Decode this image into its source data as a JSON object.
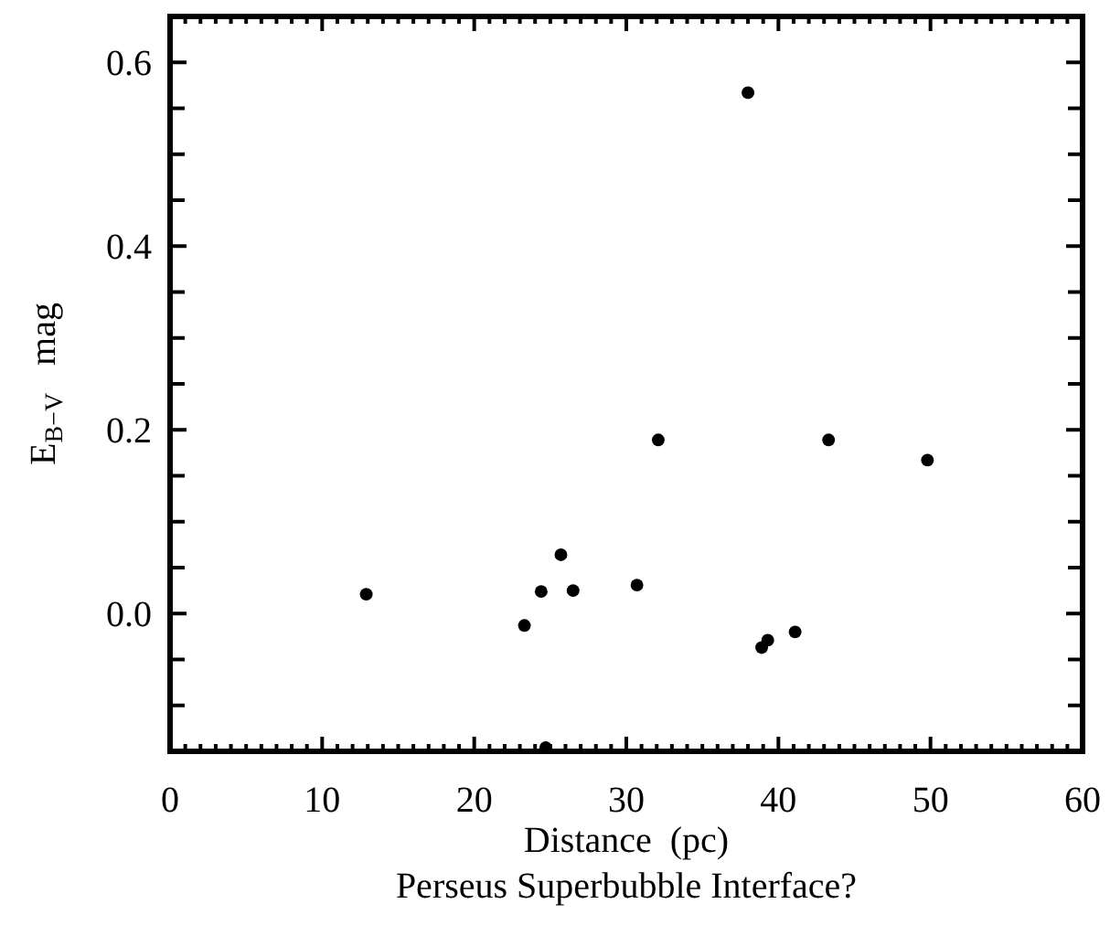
{
  "chart_data": {
    "type": "scatter",
    "title": "Perseus Superbubble Interface?",
    "xlabel": "Distance  (pc)",
    "ylabel": "E$_{B−V}$   mag",
    "x": [
      12.9,
      23.3,
      24.4,
      25.7,
      26.5,
      30.7,
      32.1,
      38.0,
      43.3,
      49.8,
      38.9,
      39.3,
      41.1,
      24.7
    ],
    "values": [
      0.021,
      -0.013,
      0.024,
      0.064,
      0.025,
      0.031,
      0.189,
      0.567,
      0.189,
      0.167,
      -0.037,
      -0.029,
      -0.02,
      -0.146
    ],
    "color": "#000000",
    "marker": "circle",
    "grid": false,
    "xlim": [
      0,
      60
    ],
    "ylim": [
      -0.15,
      0.65
    ],
    "xticks": [
      0,
      10,
      20,
      30,
      40,
      50,
      60,
      {
        "value": 1,
        "label": null
      },
      {
        "value": 2,
        "label": null
      },
      {
        "value": 3,
        "label": null
      },
      {
        "value": 4,
        "label": null
      },
      {
        "value": 5,
        "label": null
      },
      {
        "value": 6,
        "label": null
      },
      {
        "value": 7,
        "label": null
      },
      {
        "value": 8,
        "label": null
      },
      {
        "value": 9,
        "label": null
      },
      {
        "value": 11,
        "label": null
      },
      {
        "value": 12,
        "label": null
      },
      {
        "value": 13,
        "label": null
      },
      {
        "value": 14,
        "label": null
      },
      {
        "value": 15,
        "label": null
      },
      {
        "value": 16,
        "label": null
      },
      {
        "value": 17,
        "label": null
      },
      {
        "value": 18,
        "label": null
      },
      {
        "value": 19,
        "label": null
      },
      {
        "value": 21,
        "label": null
      },
      {
        "value": 22,
        "label": null
      },
      {
        "value": 23,
        "label": null
      },
      {
        "value": 24,
        "label": null
      },
      {
        "value": 25,
        "label": null
      },
      {
        "value": 26,
        "label": null
      },
      {
        "value": 27,
        "label": null
      },
      {
        "value": 28,
        "label": null
      },
      {
        "value": 29,
        "label": null
      },
      {
        "value": 31,
        "label": null
      },
      {
        "value": 32,
        "label": null
      },
      {
        "value": 33,
        "label": null
      },
      {
        "value": 34,
        "label": null
      },
      {
        "value": 35,
        "label": null
      },
      {
        "value": 36,
        "label": null
      },
      {
        "value": 37,
        "label": null
      },
      {
        "value": 38,
        "label": null
      },
      {
        "value": 39,
        "label": null
      },
      {
        "value": 41,
        "label": null
      },
      {
        "value": 42,
        "label": null
      },
      {
        "value": 43,
        "label": null
      },
      {
        "value": 44,
        "label": null
      },
      {
        "value": 45,
        "label": null
      },
      {
        "value": 46,
        "label": null
      },
      {
        "value": 47,
        "label": null
      },
      {
        "value": 48,
        "label": null
      },
      {
        "value": 49,
        "label": null
      },
      {
        "value": 51,
        "label": null
      },
      {
        "value": 52,
        "label": null
      },
      {
        "value": 53,
        "label": null
      },
      {
        "value": 54,
        "label": null
      },
      {
        "value": 55,
        "label": null
      },
      {
        "value": 56,
        "label": null
      },
      {
        "value": 57,
        "label": null
      },
      {
        "value": 58,
        "label": null
      },
      {
        "value": 59,
        "label": null
      }
    ],
    "yticks": [
      {
        "value": 0,
        "label": "0.0"
      },
      {
        "value": 0.2,
        "label": "0.2"
      },
      {
        "value": 0.4,
        "label": "0.4"
      },
      {
        "value": 0.6,
        "label": "0.6"
      },
      {
        "value": -0.1,
        "label": null
      },
      {
        "value": -0.05,
        "label": null
      },
      {
        "value": 0.05,
        "label": null
      },
      {
        "value": 0.1,
        "label": null
      },
      {
        "value": 0.15,
        "label": null
      },
      {
        "value": 0.25,
        "label": null
      },
      {
        "value": 0.3,
        "label": null
      },
      {
        "value": 0.35,
        "label": null
      },
      {
        "value": 0.45,
        "label": null
      },
      {
        "value": 0.5,
        "label": null
      },
      {
        "value": 0.55,
        "label": null
      }
    ]
  }
}
